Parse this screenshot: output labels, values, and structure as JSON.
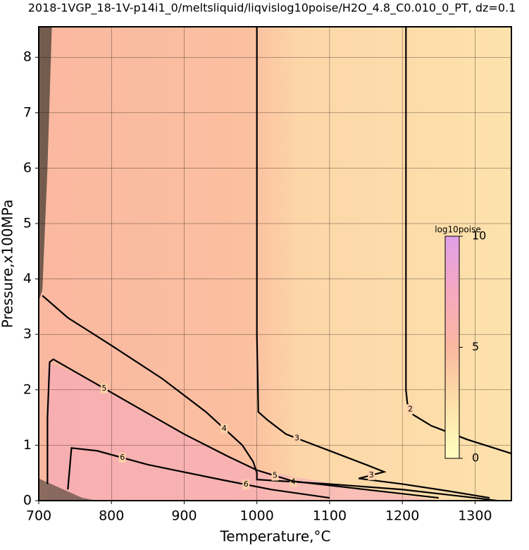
{
  "chart_data": {
    "type": "contour",
    "title": "2018-1VGP_18-1V-p14i1_0/meltsliquid/liqvislog10poise/H2O_4.8_C0.010_0_PT, dz=0.1",
    "x_label": "Temperature,°C",
    "y_label": "Pressure,x100MPa",
    "xlim": [
      700,
      1350
    ],
    "ylim": [
      0,
      8.55
    ],
    "xticks": [
      700,
      800,
      900,
      1000,
      1100,
      1200,
      1300
    ],
    "yticks": [
      0,
      1,
      2,
      3,
      4,
      5,
      6,
      7,
      8
    ],
    "grid": true,
    "colors": [
      "#ffffc0",
      "#fde0a8",
      "#fab8a0",
      "#f5a8c0",
      "#e0a0e8"
    ],
    "colorbar": {
      "label": "log10poise",
      "lim": [
        0,
        10
      ],
      "ticks": [
        0,
        5,
        10
      ]
    },
    "contours": [
      {
        "level": 2,
        "x": [
          1205,
          1205,
          1207,
          1215,
          1240,
          1290,
          1350
        ],
        "y": [
          8.55,
          2.0,
          1.75,
          1.55,
          1.35,
          1.1,
          0.85
        ]
      },
      {
        "level": 3,
        "x": [
          1000,
          1000,
          1002,
          1015,
          1040,
          1070,
          1110,
          1150,
          1175,
          1140,
          1200,
          1260,
          1320
        ],
        "y": [
          8.55,
          3.0,
          1.6,
          1.45,
          1.2,
          1.05,
          0.85,
          0.65,
          0.52,
          0.4,
          0.3,
          0.18,
          0.05
        ]
      },
      {
        "level": 4,
        "x": [
          705,
          740,
          800,
          870,
          930,
          980,
          995,
          1000,
          1000,
          1100,
          1200,
          1300,
          1330
        ],
        "y": [
          3.7,
          3.3,
          2.8,
          2.2,
          1.6,
          1.0,
          0.7,
          0.5,
          0.38,
          0.3,
          0.2,
          0.05,
          0
        ]
      },
      {
        "level": 5,
        "x": [
          712,
          712,
          715,
          720,
          760,
          820,
          900,
          960,
          1000,
          1050,
          1150,
          1250
        ],
        "y": [
          0.3,
          1.5,
          2.5,
          2.55,
          2.25,
          1.8,
          1.2,
          0.8,
          0.55,
          0.35,
          0.2,
          0.05
        ]
      },
      {
        "level": 6,
        "x": [
          740,
          745,
          780,
          850,
          950,
          1020,
          1100
        ],
        "y": [
          0.2,
          0.95,
          0.9,
          0.65,
          0.38,
          0.2,
          0.05
        ]
      }
    ]
  }
}
